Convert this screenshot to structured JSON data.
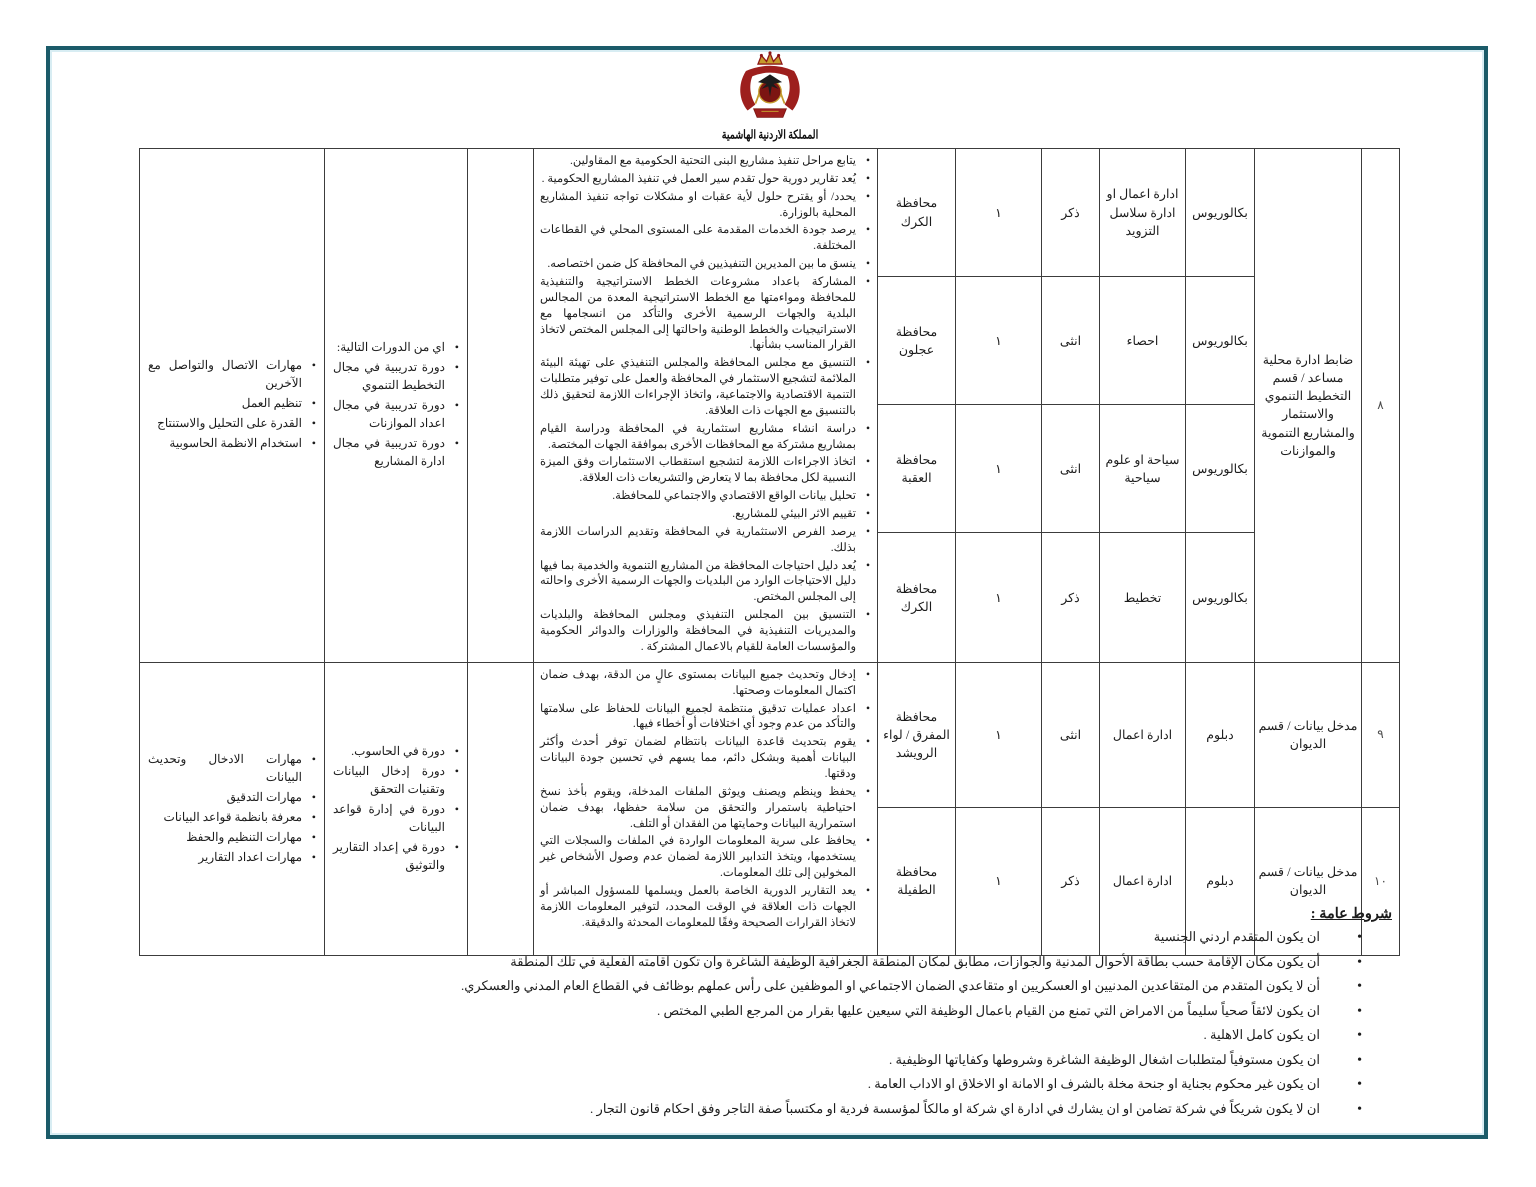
{
  "emblem": {
    "caption": "المملكة الاردنية الهاشمية"
  },
  "table": {
    "group1": {
      "number": "٨",
      "job_title": "ضابط ادارة محلية مساعد / قسم التخطيط التنموي والاستثمار والمشاريع التنموية والموازنات",
      "rows": [
        {
          "qualification": "بكالوريوس",
          "specialization": "ادارة اعمال او ادارة سلاسل التزويد",
          "gender": "ذكر",
          "count": "١",
          "governorate": "محافظة الكرك"
        },
        {
          "qualification": "بكالوريوس",
          "specialization": "احصاء",
          "gender": "انثى",
          "count": "١",
          "governorate": "محافظة عجلون"
        },
        {
          "qualification": "بكالوريوس",
          "specialization": "سياحة او علوم سياحية",
          "gender": "انثى",
          "count": "١",
          "governorate": "محافظة العقبة"
        },
        {
          "qualification": "بكالوريوس",
          "specialization": "تخطيط",
          "gender": "ذكر",
          "count": "١",
          "governorate": "محافظة الكرك"
        }
      ],
      "tasks": [
        "يتابع مراحل تنفيذ مشاريع البنى التحتية الحكومية مع المقاولين.",
        "يُعد تقارير دورية حول تقدم سير العمل في تنفيذ المشاريع الحكومية .",
        "يحدد/ أو يقترح حلول لأية عقبات او مشكلات تواجه تنفيذ المشاريع المحلية بالوزارة.",
        "يرصد جودة الخدمات المقدمة على المستوى المحلي في القطاعات المختلفة.",
        "ينسق ما بين المديرين التنفيذيين في المحافظة كل ضمن اختصاصه.",
        "المشاركة باعداد مشروعات الخطط الاستراتيجية والتنفيذية للمحافظة ومواءمتها مع الخطط الاستراتيجية المعدة من المجالس البلدية والجهات الرسمية الأخرى والتأكد من انسجامها مع الاستراتيجيات والخطط الوطنية واحالتها إلى المجلس المختص لاتخاذ القرار المناسب بشأنها.",
        "التنسيق مع مجلس المحافظة والمجلس التنفيذي على تهيئة البيئة الملائمة لتشجيع الاستثمار في المحافظة والعمل على توفير متطلبات التنمية الاقتصادية والاجتماعية، واتخاذ الإجراءات اللازمة لتحقيق ذلك بالتنسيق مع الجهات ذات العلاقة.",
        "دراسة انشاء مشاريع استثمارية في المحافظة ودراسة القيام بمشاريع مشتركة مع المحافظات الأخرى بموافقة الجهات المختصة.",
        "اتخاذ الاجراءات اللازمة لتشجيع استقطاب الاستثمارات وفق الميزة النسبية لكل محافظة بما لا يتعارض والتشريعات ذات العلاقة.",
        "تحليل بيانات الواقع الاقتصادي والاجتماعي للمحافظة.",
        "تقييم الاثر البيئي للمشاريع.",
        "يرصد الفرص الاستثمارية في المحافظة وتقديم الدراسات اللازمة بذلك.",
        "يُعد دليل احتياجات المحافظة من المشاريع التنموية والخدمية بما فيها دليل الاحتياجات الوارد من البلديات والجهات الرسمية الأخرى واحالته إلى المجلس المختص.",
        "التنسيق بين المجلس التنفيذي ومجلس المحافظة والبلديات والمديريات التنفيذية في المحافظة والوزارات والدوائر الحكومية والمؤسسات العامة للقيام بالاعمال المشتركة ."
      ],
      "courses": [
        "اي من الدورات التالية:",
        "دورة تدريبية في مجال التخطيط التنموي",
        "دورة تدريبية في مجال اعداد الموازنات",
        "دورة تدريبية في مجال ادارة المشاريع"
      ],
      "skills": [
        "مهارات الاتصال والتواصل مع الآخرين",
        "تنظيم العمل",
        "القدرة على التحليل والاستنتاج",
        "استخدام الانظمة الحاسوبية"
      ]
    },
    "group2": {
      "rows": [
        {
          "number": "٩",
          "job_title": "مدخل بيانات / قسم الديوان",
          "qualification": "دبلوم",
          "specialization": "ادارة اعمال",
          "gender": "انثى",
          "count": "١",
          "governorate": "محافظة المفرق / لواء الرويشد"
        },
        {
          "number": "١٠",
          "job_title": "مدخل بيانات / قسم الديوان",
          "qualification": "دبلوم",
          "specialization": "ادارة اعمال",
          "gender": "ذكر",
          "count": "١",
          "governorate": "محافظة الطفيلة"
        }
      ],
      "tasks": [
        "إدخال وتحديث جميع البيانات بمستوى عالٍ من الدقة، بهدف ضمان اكتمال المعلومات وصحتها.",
        "اعداد عمليات تدقيق منتظمة لجميع البيانات للحفاظ على سلامتها والتأكد من عدم وجود أي اختلافات أو أخطاء فيها.",
        "يقوم بتحديث قاعدة البيانات بانتظام لضمان توفر أحدث وأكثر البيانات أهمية وبشكل دائم، مما يسهم في تحسين جودة البيانات ودقتها.",
        "يحفظ وينظم ويصنف ويوثق الملفات المدخلة، ويقوم بأخذ نسخ احتياطية باستمرار والتحقق من سلامة حفظها، بهدف ضمان استمرارية البيانات وحمايتها من الفقدان أو التلف.",
        "يحافظ على سرية المعلومات الواردة في الملفات والسجلات التي يستخدمها، ويتخذ التدابير اللازمة لضمان عدم وصول الأشخاص غير المخولين إلى تلك المعلومات.",
        "يعد التقارير الدورية الخاصة بالعمل ويسلمها للمسؤول المباشر أو الجهات ذات العلاقة في الوقت المحدد، لتوفير المعلومات اللازمة لاتخاذ القرارات الصحيحة وفقًا للمعلومات المحدثة والدقيقة."
      ],
      "courses": [
        "دورة في الحاسوب.",
        "دورة إدخال البيانات وتقنيات التحقق",
        "دورة في إدارة قواعد البيانات",
        "دورة في إعداد التقارير والتوثيق"
      ],
      "skills": [
        "مهارات الادخال وتحديث البيانات",
        "مهارات التدقيق",
        "معرفة بانظمة قواعد البيانات",
        "مهارات التنظيم والحفظ",
        "مهارات اعداد التقارير"
      ]
    }
  },
  "conditions": {
    "title": "شروط عامة :",
    "items": [
      "ان يكون المتقدم اردني الجنسية",
      "أن يكون مكان الإقامة حسب بطاقة الأحوال المدنية والجوازات، مطابق لمكان المنطقة الجغرافية الوظيفة الشاغرة وان تكون اقامته الفعلية في تلك المنطقة",
      "أن لا يكون المتقدم من المتقاعدين المدنيين او العسكريين او متقاعدي الضمان الاجتماعي او الموظفين على رأس عملهم بوظائف في القطاع العام المدني والعسكري.",
      "ان يكون لائقاً صحياً سليماً من الامراض التي تمنع من القيام باعمال الوظيفة التي سيعين عليها بقرار من المرجع الطبي المختص .",
      "ان يكون كامل الاهلية .",
      "ان يكون مستوفياً لمتطلبات اشغال الوظيفة الشاغرة وشروطها وكفاياتها الوظيفية .",
      "ان يكون غير محكوم بجناية او جنحة مخلة بالشرف او الامانة او الاخلاق او الاداب العامة .",
      "ان لا يكون شريكاً في شركة تضامن او ان يشارك في ادارة اي شركة او مالكاً لمؤسسة فردية  او مكتسباً صفة التاجر وفق احكام قانون التجار ."
    ]
  }
}
